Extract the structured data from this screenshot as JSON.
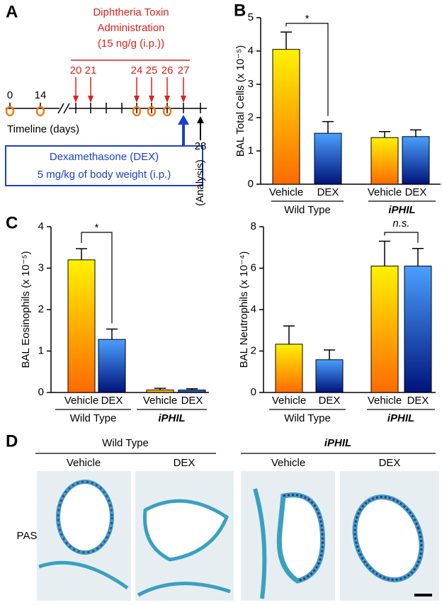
{
  "panel_labels": [
    "A",
    "B",
    "C",
    "D"
  ],
  "timeline": {
    "title": [
      "Diphtheria Toxin",
      "Administration",
      "(15 ng/g (i.p.))"
    ],
    "days_top": [
      0,
      14
    ],
    "days_toxin": [
      20,
      21,
      24,
      25,
      26,
      27
    ],
    "day_analysis": 28,
    "axis_label": "Timeline (days)",
    "analysis_label": "(Analysis)",
    "dex_box": [
      "Dexamethasone (DEX)",
      "5 mg/kg of body weight (i.p.)"
    ]
  },
  "chart_data": [
    {
      "type": "bar",
      "ylabel": "BAL Total Cells (x 10⁻⁵)",
      "categories": [
        "Vehicle",
        "DEX",
        "Vehicle",
        "DEX"
      ],
      "groups": [
        "Wild Type",
        "iPHIL"
      ],
      "values": [
        4.05,
        1.53,
        1.4,
        1.43
      ],
      "errors": [
        0.52,
        0.35,
        0.18,
        0.2
      ],
      "gradients": [
        [
          "#fff200",
          "#ff6a00"
        ],
        [
          "#4aa0ff",
          "#00137a"
        ]
      ],
      "ylim": [
        0,
        5
      ],
      "yticks": [
        0,
        1,
        2,
        3,
        4,
        5
      ],
      "significance": [
        {
          "label": "*",
          "bars": [
            0,
            1
          ]
        }
      ]
    },
    {
      "type": "bar",
      "ylabel": "BAL Eosinophils (x 10⁻⁵)",
      "categories": [
        "Vehicle",
        "DEX",
        "Vehicle",
        "DEX"
      ],
      "groups": [
        "Wild Type",
        "iPHIL"
      ],
      "values": [
        3.2,
        1.28,
        0.06,
        0.06
      ],
      "errors": [
        0.27,
        0.25,
        0.04,
        0.03
      ],
      "gradients": [
        [
          "#fff200",
          "#ff6a00"
        ],
        [
          "#4aa0ff",
          "#00137a"
        ]
      ],
      "ylim": [
        0,
        4
      ],
      "yticks": [
        0,
        1,
        2,
        3,
        4
      ],
      "significance": [
        {
          "label": "*",
          "bars": [
            0,
            1
          ]
        }
      ]
    },
    {
      "type": "bar",
      "ylabel": "BAL Neutrophils (x 10⁻⁴)",
      "categories": [
        "Vehicle",
        "DEX",
        "Vehicle",
        "DEX"
      ],
      "groups": [
        "Wild Type",
        "iPHIL"
      ],
      "values": [
        2.33,
        1.58,
        6.1,
        6.1
      ],
      "errors": [
        0.88,
        0.47,
        1.2,
        0.85
      ],
      "gradients": [
        [
          "#fff200",
          "#ff6a00"
        ],
        [
          "#4aa0ff",
          "#00137a"
        ]
      ],
      "ylim": [
        0,
        8
      ],
      "yticks": [
        0,
        2,
        4,
        6,
        8
      ],
      "significance": [
        {
          "label": "n.s.",
          "bars": [
            2,
            3
          ]
        }
      ]
    }
  ],
  "histology": {
    "groups": [
      "Wild Type",
      "iPHIL"
    ],
    "treatments": [
      "Vehicle",
      "DEX",
      "Vehicle",
      "DEX"
    ],
    "stain": "PAS"
  }
}
